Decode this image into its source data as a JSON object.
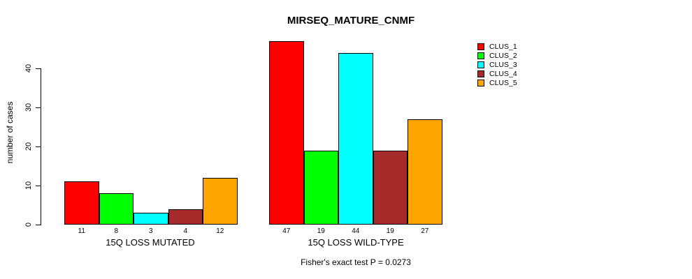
{
  "title": "MIRSEQ_MATURE_CNMF",
  "footer": "Fisher's exact test P = 0.0273",
  "chart_data": {
    "type": "bar",
    "title": "MIRSEQ_MATURE_CNMF",
    "xlabel": "",
    "ylabel": "number of cases",
    "ylim": [
      0,
      47
    ],
    "yticks": [
      0,
      10,
      20,
      30,
      40
    ],
    "grid": false,
    "legend_position": "right",
    "value_labels_shown": true,
    "annotation": "Fisher's exact test P = 0.0273",
    "series": [
      {
        "name": "CLUS_1",
        "color": "#FF0000"
      },
      {
        "name": "CLUS_2",
        "color": "#00FF00"
      },
      {
        "name": "CLUS_3",
        "color": "#00FFFF"
      },
      {
        "name": "CLUS_4",
        "color": "#A52A2A"
      },
      {
        "name": "CLUS_5",
        "color": "#FFA500"
      }
    ],
    "groups": [
      {
        "label": "15Q LOSS MUTATED",
        "values": [
          11,
          8,
          3,
          4,
          12
        ]
      },
      {
        "label": "15Q LOSS WILD-TYPE",
        "values": [
          47,
          19,
          44,
          19,
          27
        ]
      }
    ]
  }
}
